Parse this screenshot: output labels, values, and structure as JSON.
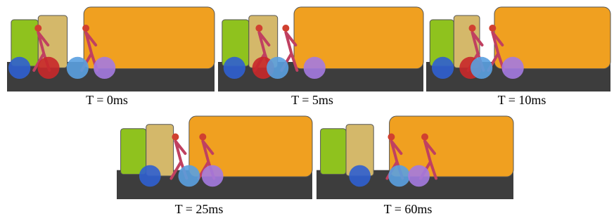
{
  "panels": [
    {
      "caption": "T = 0ms"
    },
    {
      "caption": "T = 5ms"
    },
    {
      "caption": "T = 10ms"
    },
    {
      "caption": "T = 25ms"
    },
    {
      "caption": "T = 60ms"
    }
  ]
}
